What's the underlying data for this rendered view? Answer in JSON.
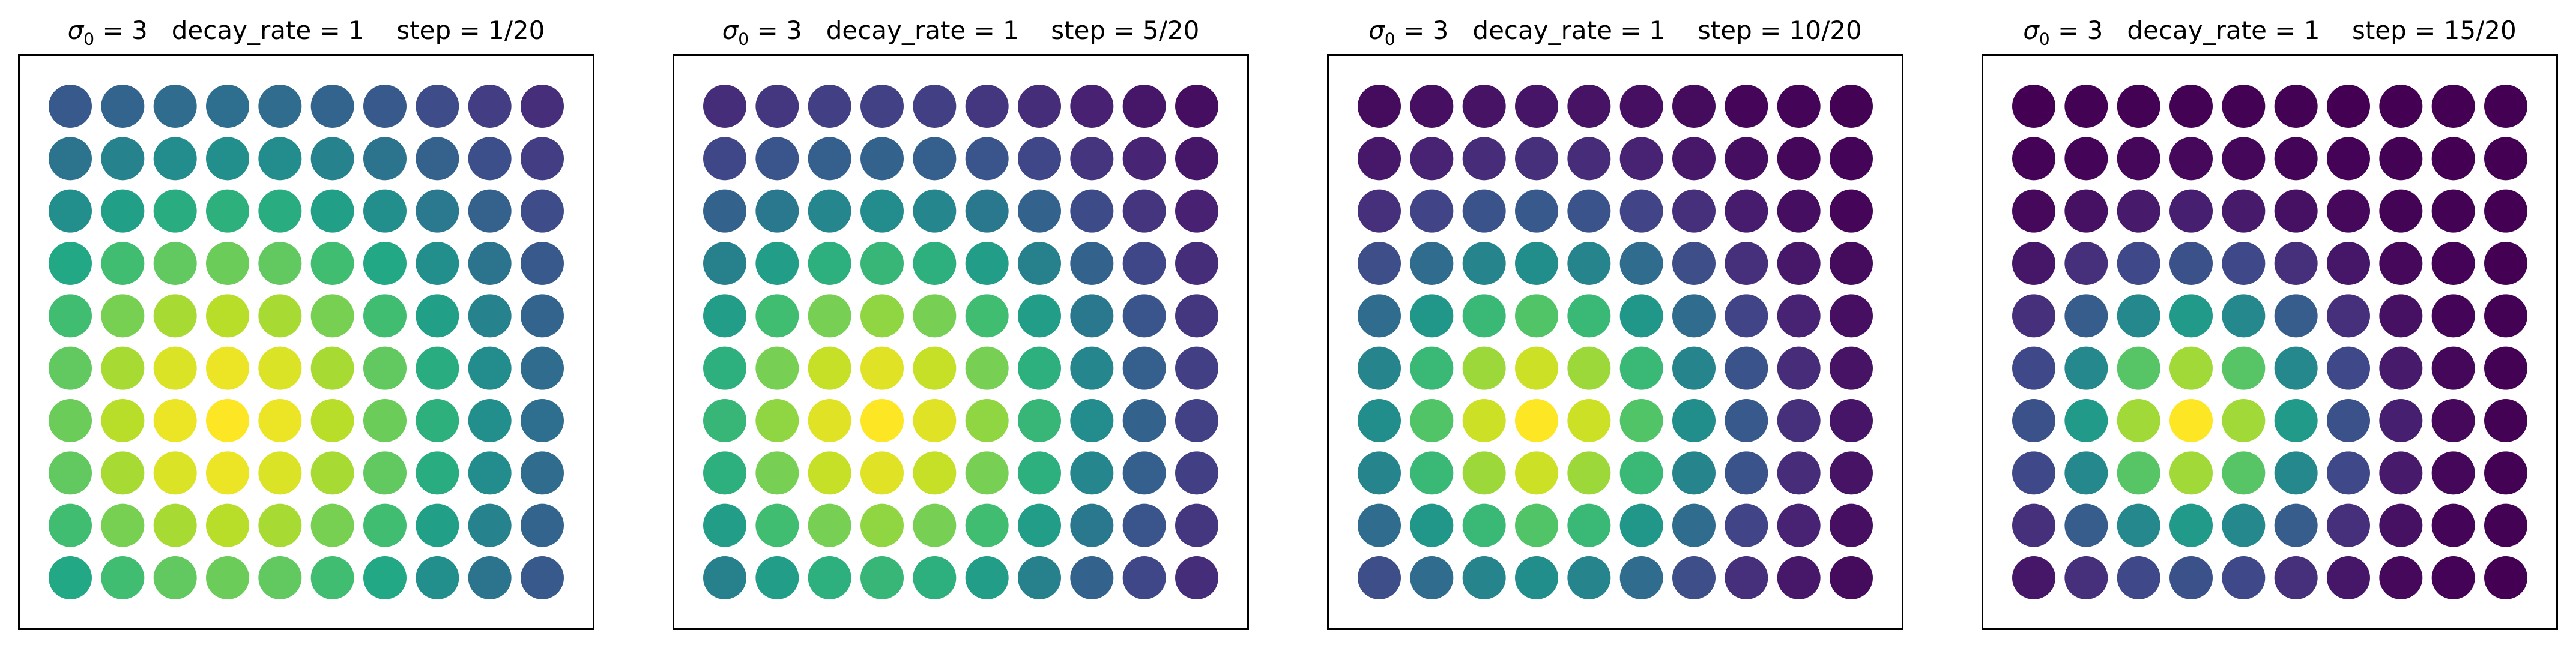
{
  "chart_data": [
    {
      "type": "heatmap",
      "title": {
        "param1_symbol": "σ",
        "param1_sub": "0",
        "param1_value": "= 3",
        "param2": "decay_rate = 1",
        "step": "step = 1/20"
      },
      "grid": {
        "rows": 10,
        "cols": 10,
        "center": [
          6,
          3
        ],
        "sigma": 4.2
      },
      "colormap": "viridis",
      "axes_visible": false
    },
    {
      "type": "heatmap",
      "title": {
        "param1_symbol": "σ",
        "param1_sub": "0",
        "param1_value": "= 3",
        "param2": "decay_rate = 1",
        "step": "step = 5/20"
      },
      "grid": {
        "rows": 10,
        "cols": 10,
        "center": [
          6,
          3
        ],
        "sigma": 3.3
      },
      "colormap": "viridis",
      "axes_visible": false
    },
    {
      "type": "heatmap",
      "title": {
        "param1_symbol": "σ",
        "param1_sub": "0",
        "param1_value": "= 3",
        "param2": "decay_rate = 1",
        "step": "step = 10/20"
      },
      "grid": {
        "rows": 10,
        "cols": 10,
        "center": [
          6,
          3
        ],
        "sigma": 2.5
      },
      "colormap": "viridis",
      "axes_visible": false
    },
    {
      "type": "heatmap",
      "title": {
        "param1_symbol": "σ",
        "param1_sub": "0",
        "param1_value": "= 3",
        "param2": "decay_rate = 1",
        "step": "step = 15/20"
      },
      "grid": {
        "rows": 10,
        "cols": 10,
        "center": [
          6,
          3
        ],
        "sigma": 1.8
      },
      "colormap": "viridis",
      "axes_visible": false
    }
  ]
}
